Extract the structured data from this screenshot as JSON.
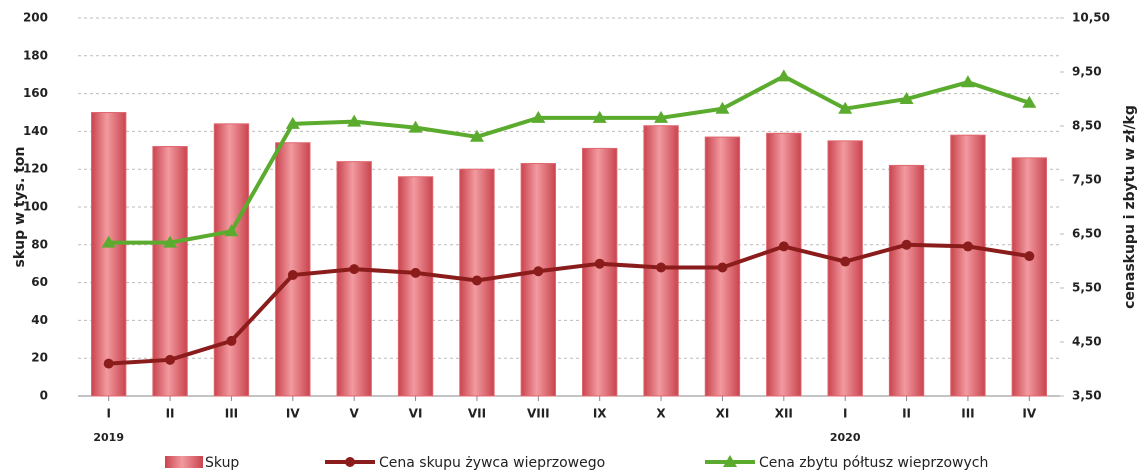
{
  "chart_data": {
    "type": "bar_line",
    "categories": [
      "I",
      "II",
      "III",
      "IV",
      "V",
      "VI",
      "VII",
      "VIII",
      "IX",
      "X",
      "XI",
      "XII",
      "I",
      "II",
      "III",
      "IV"
    ],
    "x_group_labels": [
      "2019",
      "2020"
    ],
    "ylabel": "skup w tys. ton",
    "y2label": "cenaskupu i zbytu w zł/kg",
    "ylim": [
      0,
      200
    ],
    "yticks": [
      0,
      20,
      40,
      60,
      80,
      100,
      120,
      140,
      160,
      180,
      200
    ],
    "y2lim": [
      3.5,
      10.5
    ],
    "y2ticks": [
      {
        "value": 3.5,
        "label": "3,50"
      },
      {
        "value": 4.5,
        "label": "4,50"
      },
      {
        "value": 5.5,
        "label": "5,50"
      },
      {
        "value": 6.5,
        "label": "6,50"
      },
      {
        "value": 7.5,
        "label": "7,50"
      },
      {
        "value": 8.5,
        "label": "8,50"
      },
      {
        "value": 9.5,
        "label": "9,50"
      },
      {
        "value": 10.5,
        "label": "10,50"
      }
    ],
    "grid": true,
    "series": [
      {
        "name": "Skup",
        "type": "bar",
        "color": "#e0666f",
        "values": [
          150,
          132,
          144,
          134,
          124,
          116,
          120,
          123,
          131,
          143,
          137,
          139,
          135,
          122,
          138,
          126
        ]
      },
      {
        "name": "Cena skupu żywca wieprzowego",
        "type": "line",
        "axis": "y2",
        "color": "#8b1c1c",
        "marker": "circle",
        "values": [
          4.1,
          4.17,
          4.52,
          5.74,
          5.85,
          5.78,
          5.64,
          5.81,
          5.95,
          5.88,
          5.88,
          6.27,
          5.99,
          6.3,
          6.27,
          6.09
        ]
      },
      {
        "name": "Cena zbytu półtusz wieprzowych",
        "type": "line",
        "axis": "y2",
        "color": "#5aab2e",
        "marker": "triangle",
        "values": [
          6.34,
          6.34,
          6.55,
          8.54,
          8.58,
          8.47,
          8.3,
          8.65,
          8.65,
          8.65,
          8.82,
          9.42,
          8.82,
          9.0,
          9.31,
          8.93
        ]
      }
    ]
  }
}
